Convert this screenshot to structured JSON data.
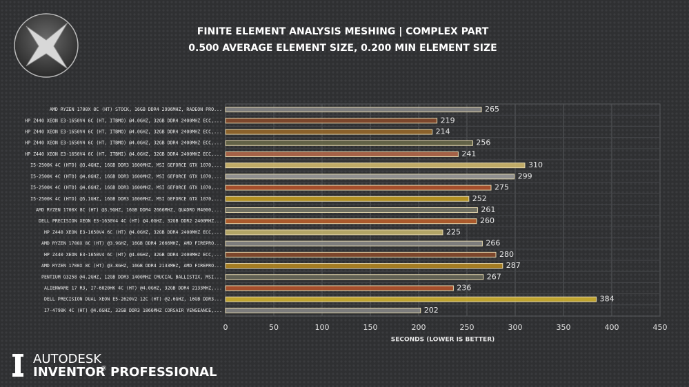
{
  "chart_data": {
    "type": "barh",
    "title": "FINITE ELEMENT ANALYSIS MESHING | COMPLEX PART",
    "subtitle": "0.500 AVERAGE ELEMENT SIZE, 0.200 MIN ELEMENT SIZE",
    "x_label": "SECONDS (LOWER IS BETTER)",
    "categories": [
      "AMD RYZEN 1700X 8C (HT) STOCK, 16GB DDR4 2996MHZ, RADEON PRO...",
      "HP Z440 XEON E3-1650V4 6C (HT, ITBMO) @4.0GHZ, 32GB DDR4 2400MHZ ECC,...",
      "HP Z440 XEON E3-1650V4 6C (HT, ITBMO) @4.0GHZ, 32GB DDR4 2400MHZ ECC,...",
      "HP Z440 XEON E3-1650V4 6C (HT, ITBMO) @4.0GHZ, 32GB DDR4 2400MHZ ECC,...",
      "HP Z440 XEON E3-1650V4 6C (HT, ITBMI) @4.0GHZ, 32GB DDR4 2400MHZ ECC,...",
      "I5-2500K 4C (HTO) @3.4GHZ, 16GB DDR3 1600MHZ, MSI GEFORCE GTX 1070,...",
      "I5-2500K 4C (HTO) @4.0GHZ, 16GB DDR3 1600MHZ, MSI GEFORCE GTX 1070,...",
      "I5-2500K 4C (HTO) @4.6GHZ, 16GB DDR3 1600MHZ, MSI GEFORCE GTX 1070,...",
      "I5-2500K 4C (HTO) @5.1GHZ, 16GB DDR3 1600MHZ, MSI GEFORCE GTX 1070,...",
      "AMD RYZEN 1700X 8C (HT) @3.9GHZ, 16GB DDR4 2666MHZ, QUADRO M4000,...",
      "DELL PRECISION XEON E3-1630V4 4C (HT) @4.0GHZ, 32GB DDR2 2400MHZ...",
      "HP Z440 XEON E3-1650V4 6C (HT) @4.0GHZ, 32GB DDR4 2400MHZ ECC,...",
      "AMD RYZEN 1700X 8C (HT) @3.9GHZ, 16GB DDR4 2666MHZ, AMD FIREPRO...",
      "HP Z440 XEON E3-1650V4 6C (HT) @4.0GHZ, 32GB DDR4 2400MHZ ECC,...",
      "AMD RYZEN 1700X 8C (HT) @3.8GHZ, 16GB DDR4 2133MHZ, AMD FIREPRO...",
      "PENTIUM G3258 @4.2GHZ, 12GB DDR3 1400MHZ CRUCIAL BALLISTIX, MSI...",
      "ALIENWARE 17 R3, I7-6820HK 4C (HT) @4.0GHZ, 32GB DDR4 2133MHZ,...",
      "DELL PRECISION DUAL XEON E5-2620V2 12C (HT) @2.6GHZ, 16GB DDR3...",
      "I7-4790K 4C (HT) @4.6GHZ, 32GB DDR3 1866MHZ CORSAIR VENGEANCE,..."
    ],
    "values": [
      265,
      219,
      214,
      256,
      241,
      310,
      299,
      275,
      252,
      261,
      260,
      225,
      266,
      280,
      287,
      267,
      236,
      384,
      202
    ],
    "colors": [
      "#8a8a8a",
      "#8a4a2a",
      "#9a6a2a",
      "#6a6a4a",
      "#b86a4a",
      "#d8c070",
      "#a0a0a0",
      "#b8542a",
      "#c8a020",
      "#7a7a6a",
      "#c0602a",
      "#c8b870",
      "#8a8a8a",
      "#8a4a2a",
      "#b88a20",
      "#6a6a5a",
      "#b8542a",
      "#d8b830",
      "#8a8a8a"
    ],
    "xlim": [
      0,
      450
    ],
    "xticks": [
      0,
      50,
      100,
      150,
      200,
      250,
      300,
      350,
      400,
      450
    ],
    "grid": true
  },
  "branding": {
    "company": "AUTODESK",
    "product": "INVENTOR",
    "mark": "®",
    "edition": "PROFESSIONAL"
  }
}
